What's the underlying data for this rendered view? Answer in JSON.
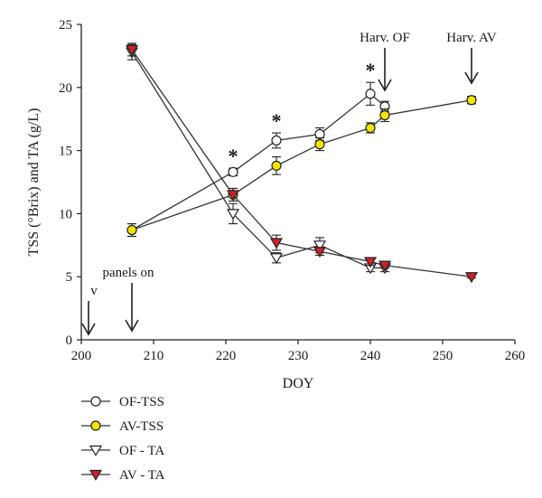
{
  "chart_data": {
    "type": "line",
    "xlabel": "DOY",
    "ylabel": "TSS (°Brix) and TA (g/L)",
    "xlim": [
      200,
      260
    ],
    "ylim": [
      0,
      25
    ],
    "x_ticks": [
      200,
      210,
      220,
      230,
      240,
      250,
      260
    ],
    "y_ticks": [
      0,
      5,
      10,
      15,
      20,
      25
    ],
    "grid": false,
    "legend_position": "bottom-left",
    "series": [
      {
        "name": "OF-TSS",
        "marker": "circle",
        "fill": "#ffffff",
        "points": [
          {
            "x": 207,
            "y": 8.7,
            "err": 0.5
          },
          {
            "x": 221,
            "y": 13.3,
            "err": 0.3
          },
          {
            "x": 227,
            "y": 15.8,
            "err": 0.6
          },
          {
            "x": 233,
            "y": 16.3,
            "err": 0.5
          },
          {
            "x": 240,
            "y": 19.5,
            "err": 0.9
          },
          {
            "x": 242,
            "y": 18.5,
            "err": 0.4
          }
        ]
      },
      {
        "name": "AV-TSS",
        "marker": "circle",
        "fill": "#f2e600",
        "points": [
          {
            "x": 207,
            "y": 8.7,
            "err": 0.5
          },
          {
            "x": 221,
            "y": 11.5,
            "err": 0.5
          },
          {
            "x": 227,
            "y": 13.8,
            "err": 0.7
          },
          {
            "x": 233,
            "y": 15.5,
            "err": 0.5
          },
          {
            "x": 240,
            "y": 16.8,
            "err": 0.4
          },
          {
            "x": 242,
            "y": 17.8,
            "err": 0.5
          },
          {
            "x": 254,
            "y": 19.0,
            "err": 0.3
          }
        ]
      },
      {
        "name": "OF - TA",
        "marker": "triangle-down",
        "fill": "#ffffff",
        "points": [
          {
            "x": 207,
            "y": 22.8,
            "err": 0.6
          },
          {
            "x": 221,
            "y": 10.0,
            "err": 0.8
          },
          {
            "x": 227,
            "y": 6.5,
            "err": 0.4
          },
          {
            "x": 233,
            "y": 7.5,
            "err": 0.6
          },
          {
            "x": 240,
            "y": 5.7,
            "err": 0.3
          },
          {
            "x": 242,
            "y": 5.7,
            "err": 0.3
          }
        ]
      },
      {
        "name": "AV - TA",
        "marker": "triangle-down",
        "fill": "#d0202a",
        "points": [
          {
            "x": 207,
            "y": 23.0,
            "err": 0.5
          },
          {
            "x": 221,
            "y": 11.5,
            "err": 0.5
          },
          {
            "x": 227,
            "y": 7.7,
            "err": 0.6
          },
          {
            "x": 233,
            "y": 7.0,
            "err": 0.3
          },
          {
            "x": 240,
            "y": 6.2,
            "err": 0.3
          },
          {
            "x": 242,
            "y": 5.9,
            "err": 0.2
          },
          {
            "x": 254,
            "y": 5.0,
            "err": 0.1
          }
        ]
      }
    ],
    "significance_marks": [
      {
        "x": 221,
        "label": "*"
      },
      {
        "x": 227,
        "label": "*"
      },
      {
        "x": 240,
        "label": "*"
      }
    ],
    "annotations": [
      {
        "label": "v",
        "x": 201
      },
      {
        "label": "panels on",
        "x": 207
      },
      {
        "label": "Harv. OF",
        "x": 242
      },
      {
        "label": "Harv. AV",
        "x": 254
      }
    ]
  }
}
